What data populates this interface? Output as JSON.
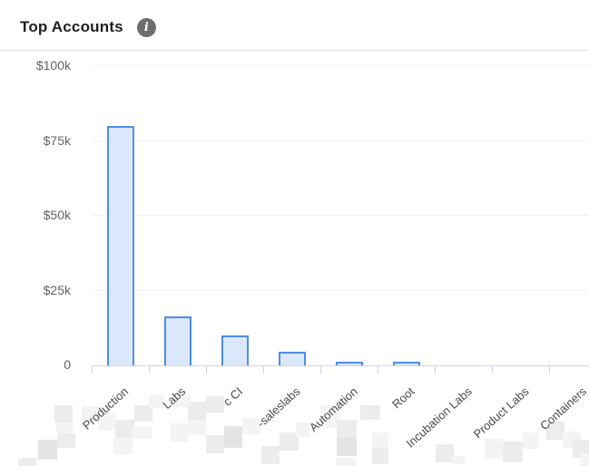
{
  "header": {
    "title": "Top Accounts",
    "info_glyph": "i"
  },
  "chart_data": {
    "type": "bar",
    "title": "Top Accounts",
    "categories": [
      "Production",
      "Labs",
      "c CI",
      "-saleslabs",
      "Automation",
      "Root",
      "Incubation Labs",
      "Product Labs",
      "Containers"
    ],
    "values": [
      80000,
      16400,
      10000,
      4500,
      1100,
      1300,
      0,
      0,
      0
    ],
    "ytick_labels": [
      "$100k",
      "$75k",
      "$50k",
      "$25k",
      "0"
    ],
    "ylim": [
      0,
      100000
    ],
    "xlabel": "",
    "ylabel": "",
    "grid": true,
    "legend": "none",
    "x_label_rotation_deg": -42
  },
  "colors": {
    "bar_fill": "#dbe8fb",
    "bar_border": "#4e8de9",
    "axis_line": "#ccd4ea",
    "gridline": "#f2f2f2",
    "axis_text": "#5f6368",
    "title_text": "#1f1f1f",
    "info_icon_bg": "#6e6e6e",
    "divider": "#e4e4e4"
  }
}
